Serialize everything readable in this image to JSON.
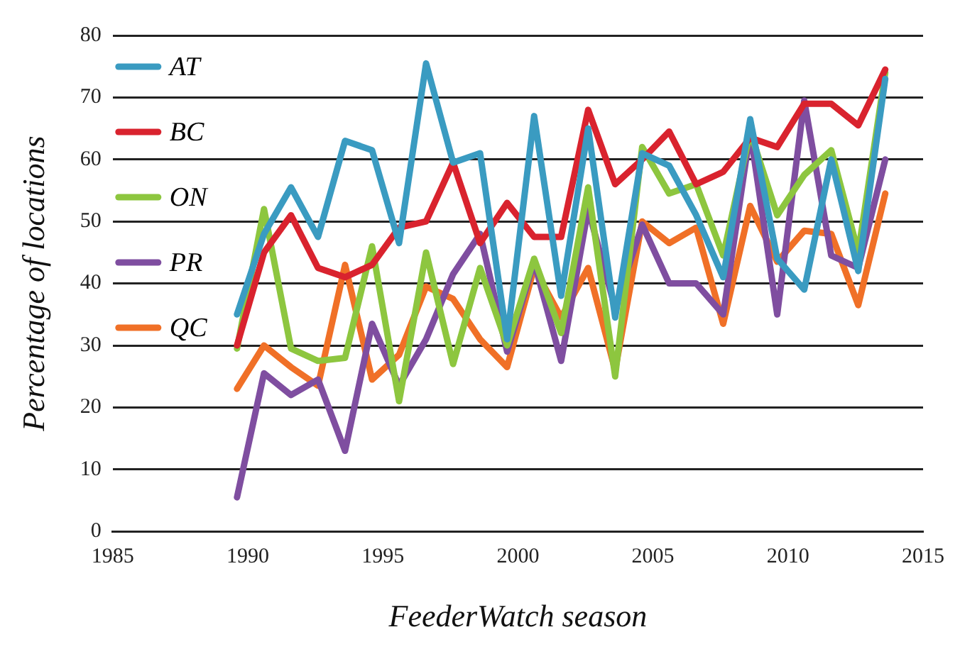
{
  "chart_data": {
    "type": "line",
    "xlabel": "FeederWatch season",
    "ylabel": "Percentage of locations",
    "x": [
      1989.6,
      1990.6,
      1991.6,
      1992.6,
      1993.6,
      1994.6,
      1995.6,
      1996.6,
      1997.6,
      1998.6,
      1999.6,
      2000.6,
      2001.6,
      2002.6,
      2003.6,
      2004.6,
      2005.6,
      2006.6,
      2007.6,
      2008.6,
      2009.6,
      2010.6,
      2011.6,
      2012.6,
      2013.6
    ],
    "series": [
      {
        "name": "AT",
        "color": "#3a9bc1",
        "values": [
          35,
          48,
          55.5,
          47.5,
          63,
          61.5,
          46.5,
          75.5,
          59.5,
          61,
          31,
          67,
          38,
          65,
          34.5,
          61,
          59,
          51,
          41,
          66.5,
          44,
          39,
          60,
          42,
          73
        ]
      },
      {
        "name": "BC",
        "color": "#d9232e",
        "values": [
          30,
          45,
          51,
          42.5,
          41,
          43,
          49,
          50,
          59.5,
          46.5,
          53,
          47.5,
          47.5,
          68,
          56,
          60,
          64.5,
          56,
          58,
          63.5,
          62,
          69,
          69,
          65.5,
          74.5
        ]
      },
      {
        "name": "ON",
        "color": "#8dc63f",
        "values": [
          29.5,
          52,
          29.5,
          27.5,
          28,
          46,
          21,
          45,
          27,
          42.5,
          30,
          44,
          32,
          55.5,
          25,
          62,
          54.5,
          56,
          44.5,
          64.5,
          51,
          57.5,
          61.5,
          45,
          74
        ]
      },
      {
        "name": "PR",
        "color": "#7f4ea0",
        "values": [
          5.5,
          25.5,
          22,
          24.5,
          13,
          33.5,
          23.5,
          31,
          41.5,
          48,
          29,
          43.5,
          27.5,
          52,
          36,
          49.5,
          40,
          40,
          35,
          64.5,
          35,
          69.5,
          44.5,
          42.5,
          60
        ]
      },
      {
        "name": "QC",
        "color": "#f07027",
        "values": [
          23,
          30,
          26.5,
          23.5,
          43,
          24.5,
          28.5,
          39.5,
          37.5,
          31,
          26.5,
          42.5,
          34.5,
          42.5,
          26,
          50,
          46.5,
          49,
          33.5,
          52.5,
          43.5,
          48.5,
          48,
          36.5,
          54.5
        ]
      }
    ],
    "xlim": [
      1985,
      2015
    ],
    "xticks": [
      1985,
      1990,
      1995,
      2000,
      2005,
      2010,
      2015
    ],
    "ylim": [
      0,
      80
    ],
    "yticks": [
      0,
      10,
      20,
      30,
      40,
      50,
      60,
      70,
      80
    ],
    "grid": "y",
    "legend": "top left",
    "marker": "none",
    "line_style": "solid"
  }
}
